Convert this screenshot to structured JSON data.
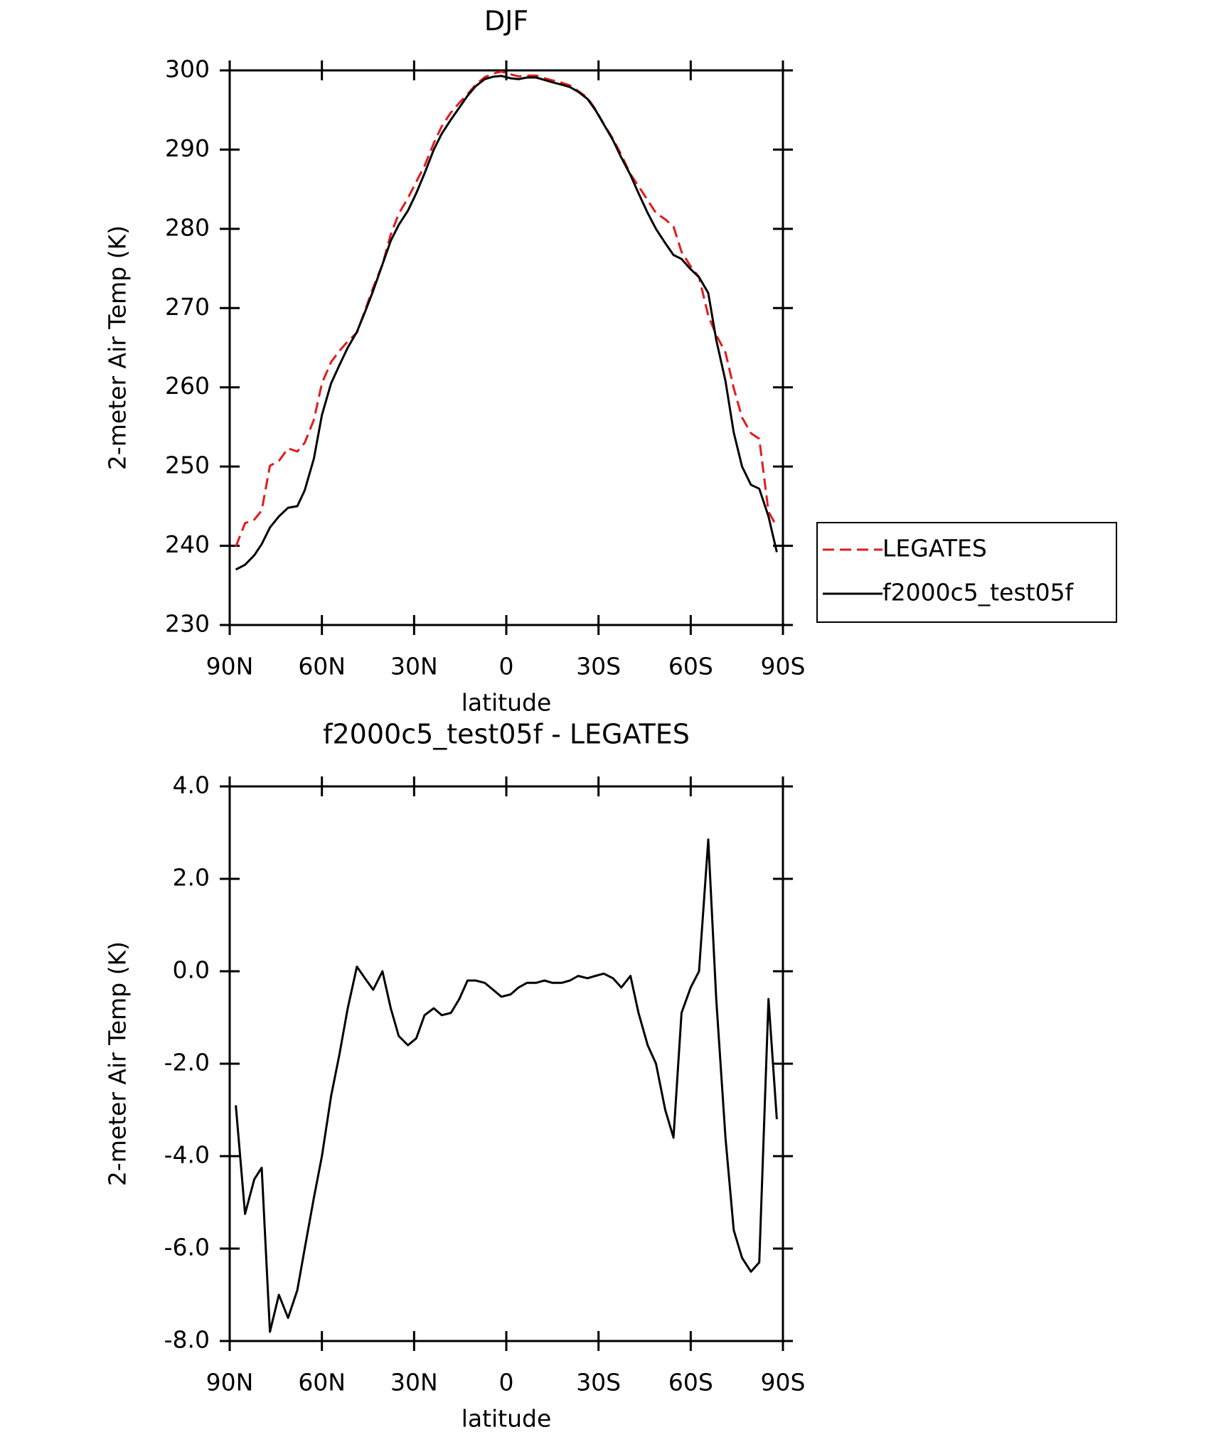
{
  "chart_data": [
    {
      "type": "line",
      "title": "DJF",
      "x_label": "latitude",
      "y_label": "2-meter Air Temp (K)",
      "x": [
        88,
        85,
        82,
        79.6,
        76.9,
        74,
        71,
        68,
        65.6,
        62.6,
        60,
        57,
        54.3,
        51.6,
        48.6,
        46,
        43.3,
        40.3,
        37.6,
        35,
        32,
        29.3,
        26.6,
        23.6,
        21,
        18,
        15.3,
        12.6,
        10,
        7,
        4.3,
        1.6,
        -1.4,
        -4,
        -6.7,
        -9.7,
        -12.4,
        -15,
        -18,
        -20.7,
        -23.4,
        -26.4,
        -29,
        -31.7,
        -34.7,
        -37.4,
        -40.4,
        -43,
        -46,
        -48.7,
        -51.7,
        -54.4,
        -57,
        -60,
        -62.7,
        -65.7,
        -68.3,
        -71.3,
        -74,
        -76.7,
        -79.6,
        -82.3,
        -85.3,
        -88
      ],
      "series": [
        {
          "name": "LEGATES",
          "color": "#e41a1c",
          "line_style": "dashed",
          "values": [
            239.9,
            242.85,
            243.3,
            244.45,
            250.1,
            250.7,
            252.3,
            251.9,
            253.0,
            255.9,
            260.5,
            263.2,
            264.6,
            265.8,
            266.9,
            269.65,
            272.6,
            275.5,
            279.3,
            281.9,
            283.9,
            285.95,
            287.95,
            290.8,
            292.95,
            294.7,
            295.9,
            297.0,
            298.2,
            299.15,
            299.6,
            299.85,
            299.5,
            299.25,
            299.35,
            299.35,
            299.0,
            298.75,
            298.45,
            298.1,
            297.4,
            296.55,
            295.1,
            293.25,
            291.35,
            289.35,
            286.9,
            285.4,
            283.6,
            282.0,
            281.2,
            280.3,
            277.1,
            275.25,
            273.9,
            269.05,
            266.6,
            264.4,
            259.9,
            256.2,
            254.2,
            253.5,
            244.3,
            242.4
          ]
        },
        {
          "name": "f2000c5_test05f",
          "color": "#000000",
          "line_style": "solid",
          "values": [
            237.0,
            237.6,
            238.8,
            240.2,
            242.3,
            243.7,
            244.8,
            245.0,
            247.0,
            251.0,
            256.5,
            260.5,
            262.8,
            265.0,
            267.0,
            269.5,
            272.2,
            275.5,
            278.5,
            280.5,
            282.3,
            284.5,
            287.0,
            290.0,
            292.0,
            293.8,
            295.3,
            296.8,
            298.0,
            298.9,
            299.2,
            299.3,
            299.0,
            298.9,
            299.1,
            299.1,
            298.8,
            298.5,
            298.2,
            297.9,
            297.3,
            296.4,
            295.0,
            293.2,
            291.2,
            289.0,
            286.8,
            284.5,
            282.0,
            280.0,
            278.2,
            276.7,
            276.2,
            274.9,
            273.9,
            271.9,
            266.0,
            260.8,
            254.3,
            250.0,
            247.7,
            247.2,
            243.7,
            239.2
          ]
        }
      ],
      "xlim": [
        90,
        -90
      ],
      "xticks": [
        {
          "value": 90,
          "label": "90N"
        },
        {
          "value": 60,
          "label": "60N"
        },
        {
          "value": 30,
          "label": "30N"
        },
        0,
        {
          "value": -30,
          "label": "30S"
        },
        {
          "value": -60,
          "label": "60S"
        },
        {
          "value": -90,
          "label": "90S"
        }
      ],
      "ylim": [
        230,
        300
      ],
      "yticks": [
        230,
        240,
        250,
        260,
        270,
        280,
        290,
        300
      ],
      "legend": "right"
    },
    {
      "type": "line",
      "title": "f2000c5_test05f - LEGATES",
      "x_label": "latitude",
      "y_label": "2-meter Air Temp (K)",
      "x": [
        88,
        85,
        82,
        79.6,
        76.9,
        74,
        71,
        68,
        65.6,
        62.6,
        60,
        57,
        54.3,
        51.6,
        48.6,
        46,
        43.3,
        40.3,
        37.6,
        35,
        32,
        29.3,
        26.6,
        23.6,
        21,
        18,
        15.3,
        12.6,
        10,
        7,
        4.3,
        1.6,
        -1.4,
        -4,
        -6.7,
        -9.7,
        -12.4,
        -15,
        -18,
        -20.7,
        -23.4,
        -26.4,
        -29,
        -31.7,
        -34.7,
        -37.4,
        -40.4,
        -43,
        -46,
        -48.7,
        -51.7,
        -54.4,
        -57,
        -60,
        -62.7,
        -65.7,
        -68.3,
        -71.3,
        -74,
        -76.7,
        -79.6,
        -82.3,
        -85.3,
        -88
      ],
      "values": [
        -2.9,
        -5.25,
        -4.5,
        -4.25,
        -7.8,
        -7.0,
        -7.5,
        -6.9,
        -6.0,
        -4.9,
        -4.0,
        -2.7,
        -1.8,
        -0.8,
        0.1,
        -0.15,
        -0.4,
        0.0,
        -0.8,
        -1.4,
        -1.6,
        -1.45,
        -0.95,
        -0.8,
        -0.95,
        -0.9,
        -0.6,
        -0.2,
        -0.2,
        -0.25,
        -0.4,
        -0.55,
        -0.5,
        -0.35,
        -0.25,
        -0.25,
        -0.2,
        -0.25,
        -0.25,
        -0.2,
        -0.1,
        -0.15,
        -0.1,
        -0.05,
        -0.15,
        -0.35,
        -0.1,
        -0.9,
        -1.6,
        -2.0,
        -3.0,
        -3.6,
        -0.9,
        -0.35,
        0.0,
        2.85,
        -0.6,
        -3.6,
        -5.6,
        -6.2,
        -6.5,
        -6.3,
        -0.6,
        -3.2
      ],
      "color": "#000000",
      "xlim": [
        90,
        -90
      ],
      "xticks": [
        {
          "value": 90,
          "label": "90N"
        },
        {
          "value": 60,
          "label": "60N"
        },
        {
          "value": 30,
          "label": "30N"
        },
        0,
        {
          "value": -30,
          "label": "30S"
        },
        {
          "value": -60,
          "label": "60S"
        },
        {
          "value": -90,
          "label": "90S"
        }
      ],
      "ylim": [
        -8,
        4
      ],
      "yticks": [
        {
          "value": -8,
          "label": "-8.0"
        },
        {
          "value": -6,
          "label": "-6.0"
        },
        {
          "value": -4,
          "label": "-4.0"
        },
        {
          "value": -2,
          "label": "-2.0"
        },
        {
          "value": 0,
          "label": "0.0"
        },
        {
          "value": 2,
          "label": "2.0"
        },
        {
          "value": 4,
          "label": "4.0"
        }
      ]
    }
  ]
}
